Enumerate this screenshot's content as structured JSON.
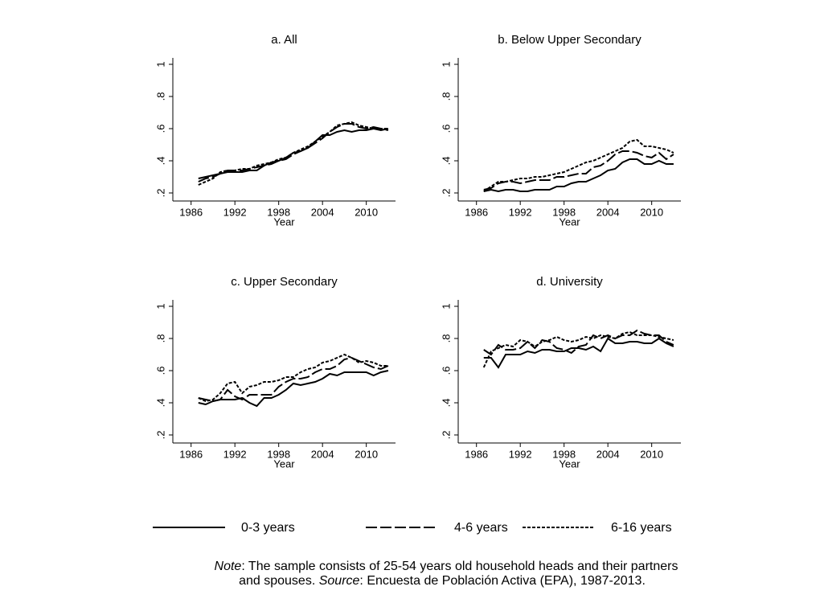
{
  "chart_data": [
    {
      "type": "line",
      "title": "a. All",
      "xlabel": "Year",
      "x": [
        1987,
        1988,
        1989,
        1990,
        1991,
        1992,
        1993,
        1994,
        1995,
        1996,
        1997,
        1998,
        1999,
        2000,
        2001,
        2002,
        2003,
        2004,
        2005,
        2006,
        2007,
        2008,
        2009,
        2010,
        2011,
        2012,
        2013
      ],
      "xlim": [
        1983.5,
        2014
      ],
      "xticks": [
        1986,
        1992,
        1998,
        2004,
        2010
      ],
      "ylim": [
        0.15,
        1.04
      ],
      "yticks": [
        {
          "value": 0.2,
          "label": ".2"
        },
        {
          "value": 0.4,
          "label": ".4"
        },
        {
          "value": 0.6,
          "label": ".6"
        },
        {
          "value": 0.8,
          "label": ".8"
        },
        1
      ],
      "series": [
        {
          "name": "0-3 years",
          "color": "#000000",
          "line_style": "solid",
          "values": [
            0.29,
            0.3,
            0.31,
            0.32,
            0.33,
            0.33,
            0.33,
            0.34,
            0.34,
            0.37,
            0.39,
            0.4,
            0.42,
            0.45,
            0.46,
            0.48,
            0.52,
            0.56,
            0.56,
            0.58,
            0.59,
            0.58,
            0.59,
            0.59,
            0.6,
            0.59,
            0.6
          ]
        },
        {
          "name": "4-6 years",
          "color": "#000000",
          "line_style": "long-dash",
          "values": [
            0.27,
            0.29,
            0.3,
            0.32,
            0.34,
            0.34,
            0.34,
            0.35,
            0.36,
            0.37,
            0.38,
            0.4,
            0.41,
            0.44,
            0.46,
            0.48,
            0.51,
            0.54,
            0.58,
            0.61,
            0.63,
            0.63,
            0.61,
            0.6,
            0.61,
            0.6,
            0.59
          ]
        },
        {
          "name": "6-16 years",
          "color": "#000000",
          "line_style": "short-dash",
          "values": [
            0.25,
            0.27,
            0.29,
            0.33,
            0.34,
            0.34,
            0.35,
            0.35,
            0.37,
            0.38,
            0.39,
            0.41,
            0.42,
            0.45,
            0.47,
            0.49,
            0.52,
            0.55,
            0.58,
            0.62,
            0.63,
            0.64,
            0.62,
            0.61,
            0.6,
            0.6,
            0.6
          ]
        }
      ]
    },
    {
      "type": "line",
      "title": "b. Below Upper Secondary",
      "xlabel": "Year",
      "x": [
        1987,
        1988,
        1989,
        1990,
        1991,
        1992,
        1993,
        1994,
        1995,
        1996,
        1997,
        1998,
        1999,
        2000,
        2001,
        2002,
        2003,
        2004,
        2005,
        2006,
        2007,
        2008,
        2009,
        2010,
        2011,
        2012,
        2013
      ],
      "xlim": [
        1983.5,
        2014
      ],
      "xticks": [
        1986,
        1992,
        1998,
        2004,
        2010
      ],
      "ylim": [
        0.15,
        1.04
      ],
      "yticks": [
        {
          "value": 0.2,
          "label": ".2"
        },
        {
          "value": 0.4,
          "label": ".4"
        },
        {
          "value": 0.6,
          "label": ".6"
        },
        {
          "value": 0.8,
          "label": ".8"
        },
        1
      ],
      "series": [
        {
          "name": "0-3 years",
          "color": "#000000",
          "line_style": "solid",
          "values": [
            0.21,
            0.22,
            0.21,
            0.22,
            0.22,
            0.21,
            0.21,
            0.22,
            0.22,
            0.22,
            0.24,
            0.24,
            0.26,
            0.27,
            0.27,
            0.29,
            0.31,
            0.34,
            0.35,
            0.39,
            0.41,
            0.41,
            0.38,
            0.38,
            0.4,
            0.38,
            0.38
          ]
        },
        {
          "name": "4-6 years",
          "color": "#000000",
          "line_style": "long-dash",
          "values": [
            0.22,
            0.23,
            0.26,
            0.27,
            0.27,
            0.26,
            0.27,
            0.28,
            0.28,
            0.28,
            0.3,
            0.3,
            0.31,
            0.32,
            0.32,
            0.36,
            0.37,
            0.4,
            0.44,
            0.46,
            0.46,
            0.45,
            0.43,
            0.42,
            0.45,
            0.41,
            0.44
          ]
        },
        {
          "name": "6-16 years",
          "color": "#000000",
          "line_style": "short-dash",
          "values": [
            0.21,
            0.24,
            0.27,
            0.27,
            0.28,
            0.29,
            0.29,
            0.3,
            0.3,
            0.31,
            0.32,
            0.33,
            0.35,
            0.37,
            0.39,
            0.4,
            0.42,
            0.44,
            0.46,
            0.48,
            0.52,
            0.53,
            0.49,
            0.49,
            0.48,
            0.47,
            0.45
          ]
        }
      ]
    },
    {
      "type": "line",
      "title": "c. Upper Secondary",
      "xlabel": "Year",
      "x": [
        1987,
        1988,
        1989,
        1990,
        1991,
        1992,
        1993,
        1994,
        1995,
        1996,
        1997,
        1998,
        1999,
        2000,
        2001,
        2002,
        2003,
        2004,
        2005,
        2006,
        2007,
        2008,
        2009,
        2010,
        2011,
        2012,
        2013
      ],
      "xlim": [
        1983.5,
        2014
      ],
      "xticks": [
        1986,
        1992,
        1998,
        2004,
        2010
      ],
      "ylim": [
        0.15,
        1.04
      ],
      "yticks": [
        {
          "value": 0.2,
          "label": ".2"
        },
        {
          "value": 0.4,
          "label": ".4"
        },
        {
          "value": 0.6,
          "label": ".6"
        },
        {
          "value": 0.8,
          "label": ".8"
        },
        1
      ],
      "series": [
        {
          "name": "0-3 years",
          "color": "#000000",
          "line_style": "solid",
          "values": [
            0.4,
            0.39,
            0.41,
            0.42,
            0.42,
            0.42,
            0.43,
            0.4,
            0.38,
            0.43,
            0.43,
            0.45,
            0.48,
            0.52,
            0.51,
            0.52,
            0.53,
            0.55,
            0.58,
            0.57,
            0.59,
            0.59,
            0.59,
            0.59,
            0.57,
            0.59,
            0.6
          ]
        },
        {
          "name": "4-6 years",
          "color": "#000000",
          "line_style": "long-dash",
          "values": [
            0.43,
            0.42,
            0.41,
            0.42,
            0.48,
            0.44,
            0.42,
            0.45,
            0.45,
            0.45,
            0.45,
            0.5,
            0.53,
            0.55,
            0.55,
            0.56,
            0.59,
            0.61,
            0.61,
            0.63,
            0.67,
            0.68,
            0.66,
            0.64,
            0.62,
            0.61,
            0.63
          ]
        },
        {
          "name": "6-16 years",
          "color": "#000000",
          "line_style": "short-dash",
          "values": [
            0.43,
            0.41,
            0.42,
            0.46,
            0.52,
            0.53,
            0.46,
            0.5,
            0.51,
            0.53,
            0.53,
            0.54,
            0.56,
            0.56,
            0.59,
            0.61,
            0.62,
            0.65,
            0.66,
            0.68,
            0.7,
            0.68,
            0.65,
            0.66,
            0.65,
            0.63,
            0.63
          ]
        }
      ]
    },
    {
      "type": "line",
      "title": "d. University",
      "xlabel": "Year",
      "x": [
        1987,
        1988,
        1989,
        1990,
        1991,
        1992,
        1993,
        1994,
        1995,
        1996,
        1997,
        1998,
        1999,
        2000,
        2001,
        2002,
        2003,
        2004,
        2005,
        2006,
        2007,
        2008,
        2009,
        2010,
        2011,
        2012,
        2013
      ],
      "xlim": [
        1983.5,
        2014
      ],
      "xticks": [
        1986,
        1992,
        1998,
        2004,
        2010
      ],
      "ylim": [
        0.15,
        1.04
      ],
      "yticks": [
        {
          "value": 0.2,
          "label": ".2"
        },
        {
          "value": 0.4,
          "label": ".4"
        },
        {
          "value": 0.6,
          "label": ".6"
        },
        {
          "value": 0.8,
          "label": ".8"
        },
        1
      ],
      "series": [
        {
          "name": "0-3 years",
          "color": "#000000",
          "line_style": "solid",
          "values": [
            0.68,
            0.68,
            0.62,
            0.7,
            0.7,
            0.7,
            0.72,
            0.71,
            0.73,
            0.73,
            0.72,
            0.72,
            0.74,
            0.74,
            0.73,
            0.75,
            0.72,
            0.8,
            0.77,
            0.77,
            0.78,
            0.78,
            0.77,
            0.77,
            0.8,
            0.77,
            0.75
          ]
        },
        {
          "name": "4-6 years",
          "color": "#000000",
          "line_style": "long-dash",
          "values": [
            0.73,
            0.7,
            0.76,
            0.73,
            0.73,
            0.74,
            0.78,
            0.74,
            0.79,
            0.78,
            0.74,
            0.73,
            0.71,
            0.75,
            0.76,
            0.82,
            0.8,
            0.82,
            0.8,
            0.82,
            0.82,
            0.85,
            0.83,
            0.82,
            0.82,
            0.78,
            0.76
          ]
        },
        {
          "name": "6-16 years",
          "color": "#000000",
          "line_style": "short-dash",
          "values": [
            0.62,
            0.72,
            0.74,
            0.76,
            0.75,
            0.79,
            0.78,
            0.75,
            0.78,
            0.79,
            0.81,
            0.79,
            0.78,
            0.79,
            0.81,
            0.8,
            0.82,
            0.81,
            0.8,
            0.83,
            0.84,
            0.82,
            0.82,
            0.82,
            0.81,
            0.8,
            0.79
          ]
        }
      ]
    }
  ],
  "note": {
    "lines": [
      [
        {
          "text": "Note",
          "italic": true
        },
        {
          "text": ": The sample consists of 25-54 years old household heads and their partners"
        }
      ],
      [
        {
          "text": "and spouses. "
        },
        {
          "text": "Source",
          "italic": true
        },
        {
          "text": ": Encuesta de Población Activa (EPA), 1987-2013."
        }
      ]
    ]
  }
}
